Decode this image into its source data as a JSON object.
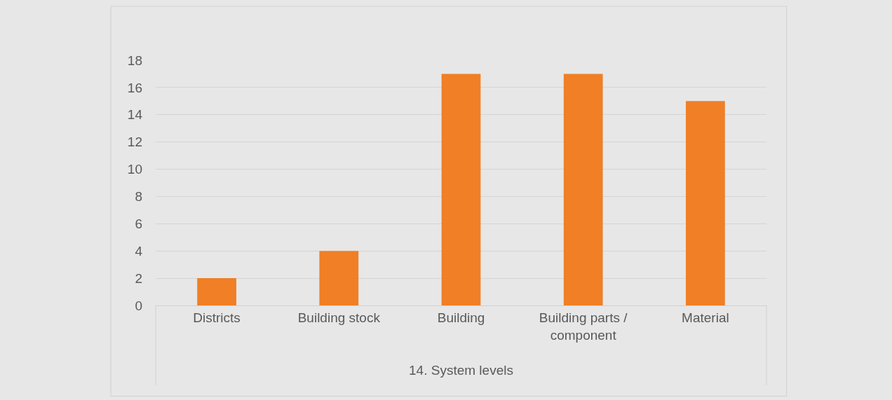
{
  "chart_data": {
    "type": "bar",
    "xlabel": "14. System levels",
    "categories": [
      "Districts",
      "Building stock",
      "Building",
      "Building parts / component",
      "Material"
    ],
    "values": [
      2,
      4,
      17,
      17,
      15
    ],
    "color": "#f07f26",
    "ylim": [
      0,
      18
    ],
    "yticks": [
      0,
      2,
      4,
      6,
      8,
      10,
      12,
      14,
      16,
      18
    ],
    "grid": "y"
  }
}
